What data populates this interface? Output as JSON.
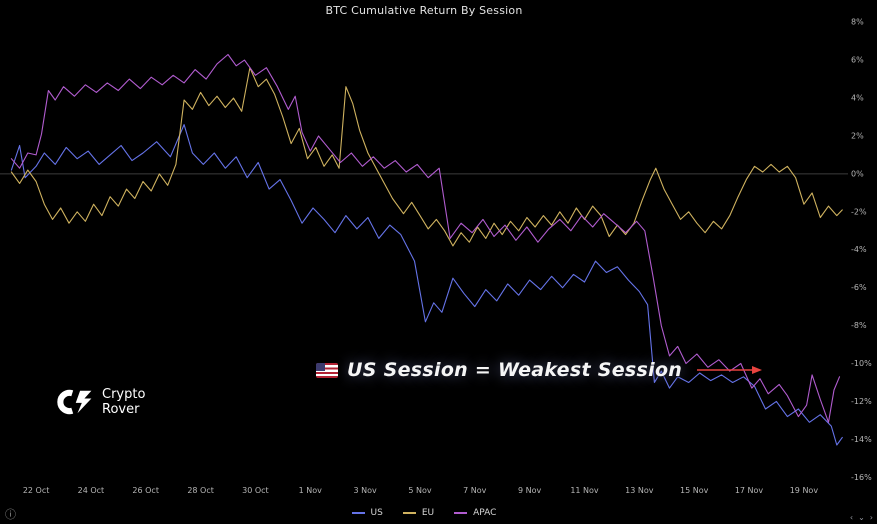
{
  "title": "BTC Cumulative Return By Session",
  "annotation": {
    "flag": "US",
    "text": "US Session = Weakest Session",
    "arrow_color": "#e8433f"
  },
  "logo": {
    "line1": "Crypto",
    "line2": "Rover"
  },
  "footer": {
    "info_symbol": "ⓘ",
    "nav_left": "‹",
    "nav_middle": "⌄",
    "nav_right": "›"
  },
  "chart_data": {
    "type": "line",
    "title": "BTC Cumulative Return By Session",
    "xlabel": "",
    "ylabel": "",
    "grid": false,
    "zero_line": true,
    "legend_position": "bottom",
    "ylim": [
      -16,
      8
    ],
    "y_unit": "%",
    "x_unit": "day index (0 = 22 Oct)",
    "y_ticks": [
      {
        "value": 8,
        "label": "8%"
      },
      {
        "value": 6,
        "label": "6%"
      },
      {
        "value": 4,
        "label": "4%"
      },
      {
        "value": 2,
        "label": "2%"
      },
      {
        "value": 0,
        "label": "0%"
      },
      {
        "value": -2,
        "label": "-2%"
      },
      {
        "value": -4,
        "label": "-4%"
      },
      {
        "value": -6,
        "label": "-6%"
      },
      {
        "value": -8,
        "label": "-8%"
      },
      {
        "value": -10,
        "label": "-10%"
      },
      {
        "value": -12,
        "label": "-12%"
      },
      {
        "value": -14,
        "label": "-14%"
      },
      {
        "value": -16,
        "label": "-16%"
      }
    ],
    "x_ticks": [
      {
        "day": 0,
        "label": "22 Oct"
      },
      {
        "day": 2,
        "label": "24 Oct"
      },
      {
        "day": 4,
        "label": "26 Oct"
      },
      {
        "day": 6,
        "label": "28 Oct"
      },
      {
        "day": 8,
        "label": "30 Oct"
      },
      {
        "day": 10,
        "label": "1 Nov"
      },
      {
        "day": 12,
        "label": "3 Nov"
      },
      {
        "day": 14,
        "label": "5 Nov"
      },
      {
        "day": 16,
        "label": "7 Nov"
      },
      {
        "day": 18,
        "label": "9 Nov"
      },
      {
        "day": 20,
        "label": "11 Nov"
      },
      {
        "day": 22,
        "label": "13 Nov"
      },
      {
        "day": 24,
        "label": "15 Nov"
      },
      {
        "day": 26,
        "label": "17 Nov"
      },
      {
        "day": 28,
        "label": "19 Nov"
      }
    ],
    "series": [
      {
        "name": "US",
        "color": "#6573e8",
        "points": [
          [
            -0.9,
            0.2
          ],
          [
            -0.6,
            1.5
          ],
          [
            -0.4,
            -0.2
          ],
          [
            0,
            0.4
          ],
          [
            0.3,
            1.1
          ],
          [
            0.7,
            0.5
          ],
          [
            1.1,
            1.4
          ],
          [
            1.5,
            0.8
          ],
          [
            1.9,
            1.2
          ],
          [
            2.3,
            0.5
          ],
          [
            2.7,
            1.0
          ],
          [
            3.1,
            1.5
          ],
          [
            3.5,
            0.7
          ],
          [
            3.9,
            1.1
          ],
          [
            4.4,
            1.7
          ],
          [
            4.9,
            0.9
          ],
          [
            5.4,
            2.6
          ],
          [
            5.7,
            1.1
          ],
          [
            6.1,
            0.5
          ],
          [
            6.5,
            1.1
          ],
          [
            6.9,
            0.3
          ],
          [
            7.3,
            0.9
          ],
          [
            7.7,
            -0.2
          ],
          [
            8.1,
            0.6
          ],
          [
            8.5,
            -0.8
          ],
          [
            8.9,
            -0.3
          ],
          [
            9.3,
            -1.4
          ],
          [
            9.7,
            -2.6
          ],
          [
            10.1,
            -1.8
          ],
          [
            10.5,
            -2.4
          ],
          [
            10.9,
            -3.1
          ],
          [
            11.3,
            -2.2
          ],
          [
            11.7,
            -2.9
          ],
          [
            12.1,
            -2.3
          ],
          [
            12.5,
            -3.4
          ],
          [
            12.9,
            -2.7
          ],
          [
            13.3,
            -3.2
          ],
          [
            13.8,
            -4.6
          ],
          [
            14.2,
            -7.8
          ],
          [
            14.5,
            -6.8
          ],
          [
            14.8,
            -7.3
          ],
          [
            15.2,
            -5.5
          ],
          [
            15.6,
            -6.3
          ],
          [
            16.0,
            -7.0
          ],
          [
            16.4,
            -6.1
          ],
          [
            16.8,
            -6.7
          ],
          [
            17.2,
            -5.8
          ],
          [
            17.6,
            -6.4
          ],
          [
            18.0,
            -5.6
          ],
          [
            18.4,
            -6.1
          ],
          [
            18.8,
            -5.4
          ],
          [
            19.2,
            -6.0
          ],
          [
            19.6,
            -5.3
          ],
          [
            20.0,
            -5.7
          ],
          [
            20.4,
            -4.6
          ],
          [
            20.8,
            -5.2
          ],
          [
            21.2,
            -4.9
          ],
          [
            21.6,
            -5.6
          ],
          [
            22.0,
            -6.2
          ],
          [
            22.3,
            -6.9
          ],
          [
            22.55,
            -11.0
          ],
          [
            22.8,
            -10.4
          ],
          [
            23.1,
            -11.3
          ],
          [
            23.4,
            -10.7
          ],
          [
            23.8,
            -11.0
          ],
          [
            24.2,
            -10.5
          ],
          [
            24.6,
            -10.9
          ],
          [
            25.0,
            -10.6
          ],
          [
            25.4,
            -11.0
          ],
          [
            25.8,
            -10.7
          ],
          [
            26.2,
            -11.2
          ],
          [
            26.6,
            -12.4
          ],
          [
            27.0,
            -12.0
          ],
          [
            27.4,
            -12.8
          ],
          [
            27.8,
            -12.4
          ],
          [
            28.2,
            -13.1
          ],
          [
            28.6,
            -12.7
          ],
          [
            29.0,
            -13.3
          ],
          [
            29.2,
            -14.3
          ],
          [
            29.4,
            -13.9
          ]
        ]
      },
      {
        "name": "EU",
        "color": "#cfb25f",
        "points": [
          [
            -0.9,
            0.1
          ],
          [
            -0.6,
            -0.5
          ],
          [
            -0.3,
            0.2
          ],
          [
            0,
            -0.4
          ],
          [
            0.3,
            -1.6
          ],
          [
            0.6,
            -2.4
          ],
          [
            0.9,
            -1.8
          ],
          [
            1.2,
            -2.6
          ],
          [
            1.5,
            -2.0
          ],
          [
            1.8,
            -2.5
          ],
          [
            2.1,
            -1.6
          ],
          [
            2.4,
            -2.2
          ],
          [
            2.7,
            -1.2
          ],
          [
            3.0,
            -1.7
          ],
          [
            3.3,
            -0.8
          ],
          [
            3.6,
            -1.3
          ],
          [
            3.9,
            -0.4
          ],
          [
            4.2,
            -0.9
          ],
          [
            4.5,
            0.0
          ],
          [
            4.8,
            -0.6
          ],
          [
            5.1,
            0.5
          ],
          [
            5.4,
            3.9
          ],
          [
            5.7,
            3.4
          ],
          [
            6.0,
            4.3
          ],
          [
            6.3,
            3.6
          ],
          [
            6.6,
            4.1
          ],
          [
            6.9,
            3.5
          ],
          [
            7.2,
            4.0
          ],
          [
            7.5,
            3.3
          ],
          [
            7.8,
            5.6
          ],
          [
            8.1,
            4.6
          ],
          [
            8.4,
            5.0
          ],
          [
            8.7,
            4.2
          ],
          [
            9.0,
            3.0
          ],
          [
            9.3,
            1.6
          ],
          [
            9.6,
            2.4
          ],
          [
            9.9,
            0.8
          ],
          [
            10.2,
            1.4
          ],
          [
            10.5,
            0.4
          ],
          [
            10.8,
            1.0
          ],
          [
            11.05,
            0.3
          ],
          [
            11.3,
            4.6
          ],
          [
            11.55,
            3.7
          ],
          [
            11.8,
            2.3
          ],
          [
            12.1,
            1.1
          ],
          [
            12.4,
            0.3
          ],
          [
            12.7,
            -0.5
          ],
          [
            13.0,
            -1.3
          ],
          [
            13.4,
            -2.1
          ],
          [
            13.7,
            -1.5
          ],
          [
            14.0,
            -2.2
          ],
          [
            14.3,
            -2.9
          ],
          [
            14.6,
            -2.4
          ],
          [
            14.9,
            -3.0
          ],
          [
            15.2,
            -3.8
          ],
          [
            15.5,
            -3.1
          ],
          [
            15.8,
            -3.6
          ],
          [
            16.1,
            -2.8
          ],
          [
            16.4,
            -3.4
          ],
          [
            16.7,
            -2.6
          ],
          [
            17.0,
            -3.2
          ],
          [
            17.3,
            -2.5
          ],
          [
            17.6,
            -3.0
          ],
          [
            17.9,
            -2.3
          ],
          [
            18.2,
            -2.8
          ],
          [
            18.5,
            -2.2
          ],
          [
            18.8,
            -2.7
          ],
          [
            19.1,
            -2.0
          ],
          [
            19.4,
            -2.6
          ],
          [
            19.7,
            -1.8
          ],
          [
            20.0,
            -2.4
          ],
          [
            20.3,
            -1.7
          ],
          [
            20.6,
            -2.2
          ],
          [
            20.9,
            -3.3
          ],
          [
            21.2,
            -2.7
          ],
          [
            21.5,
            -3.2
          ],
          [
            21.8,
            -2.6
          ],
          [
            22.1,
            -1.4
          ],
          [
            22.4,
            -0.3
          ],
          [
            22.6,
            0.3
          ],
          [
            22.9,
            -0.8
          ],
          [
            23.2,
            -1.6
          ],
          [
            23.5,
            -2.4
          ],
          [
            23.8,
            -2.0
          ],
          [
            24.1,
            -2.6
          ],
          [
            24.4,
            -3.1
          ],
          [
            24.7,
            -2.5
          ],
          [
            25.0,
            -2.9
          ],
          [
            25.3,
            -2.2
          ],
          [
            25.6,
            -1.2
          ],
          [
            25.9,
            -0.3
          ],
          [
            26.2,
            0.4
          ],
          [
            26.5,
            0.1
          ],
          [
            26.8,
            0.5
          ],
          [
            27.1,
            0.1
          ],
          [
            27.4,
            0.4
          ],
          [
            27.7,
            -0.2
          ],
          [
            28.0,
            -1.6
          ],
          [
            28.3,
            -1.0
          ],
          [
            28.6,
            -2.3
          ],
          [
            28.9,
            -1.7
          ],
          [
            29.2,
            -2.2
          ],
          [
            29.4,
            -1.9
          ]
        ]
      },
      {
        "name": "APAC",
        "color": "#b15ccf",
        "points": [
          [
            -0.9,
            0.8
          ],
          [
            -0.6,
            0.3
          ],
          [
            -0.3,
            1.1
          ],
          [
            0,
            1.0
          ],
          [
            0.2,
            2.1
          ],
          [
            0.45,
            4.4
          ],
          [
            0.7,
            3.9
          ],
          [
            1.0,
            4.6
          ],
          [
            1.4,
            4.1
          ],
          [
            1.8,
            4.7
          ],
          [
            2.2,
            4.3
          ],
          [
            2.6,
            4.8
          ],
          [
            3.0,
            4.4
          ],
          [
            3.4,
            5.0
          ],
          [
            3.8,
            4.5
          ],
          [
            4.2,
            5.1
          ],
          [
            4.6,
            4.7
          ],
          [
            5.0,
            5.2
          ],
          [
            5.4,
            4.8
          ],
          [
            5.8,
            5.5
          ],
          [
            6.2,
            5.0
          ],
          [
            6.6,
            5.8
          ],
          [
            7.0,
            6.3
          ],
          [
            7.3,
            5.7
          ],
          [
            7.6,
            6.0
          ],
          [
            8.0,
            5.2
          ],
          [
            8.4,
            5.6
          ],
          [
            8.8,
            4.6
          ],
          [
            9.2,
            3.4
          ],
          [
            9.45,
            4.1
          ],
          [
            9.7,
            2.2
          ],
          [
            10.0,
            1.2
          ],
          [
            10.3,
            2.0
          ],
          [
            10.7,
            1.3
          ],
          [
            11.1,
            0.6
          ],
          [
            11.5,
            1.1
          ],
          [
            11.9,
            0.4
          ],
          [
            12.3,
            0.9
          ],
          [
            12.7,
            0.3
          ],
          [
            13.1,
            0.7
          ],
          [
            13.5,
            0.1
          ],
          [
            13.9,
            0.5
          ],
          [
            14.3,
            -0.2
          ],
          [
            14.7,
            0.3
          ],
          [
            15.1,
            -3.4
          ],
          [
            15.5,
            -2.6
          ],
          [
            15.9,
            -3.1
          ],
          [
            16.3,
            -2.4
          ],
          [
            16.7,
            -3.3
          ],
          [
            17.1,
            -2.7
          ],
          [
            17.5,
            -3.5
          ],
          [
            17.9,
            -2.8
          ],
          [
            18.3,
            -3.6
          ],
          [
            18.7,
            -2.9
          ],
          [
            19.1,
            -2.4
          ],
          [
            19.5,
            -3.0
          ],
          [
            19.9,
            -2.2
          ],
          [
            20.3,
            -2.8
          ],
          [
            20.7,
            -2.1
          ],
          [
            21.1,
            -2.6
          ],
          [
            21.5,
            -3.1
          ],
          [
            21.9,
            -2.5
          ],
          [
            22.2,
            -3.0
          ],
          [
            22.5,
            -5.4
          ],
          [
            22.8,
            -8.0
          ],
          [
            23.1,
            -9.6
          ],
          [
            23.4,
            -9.1
          ],
          [
            23.7,
            -10.0
          ],
          [
            24.1,
            -9.5
          ],
          [
            24.5,
            -10.2
          ],
          [
            24.9,
            -9.8
          ],
          [
            25.3,
            -10.4
          ],
          [
            25.7,
            -10.0
          ],
          [
            26.1,
            -11.3
          ],
          [
            26.4,
            -10.8
          ],
          [
            26.7,
            -11.6
          ],
          [
            27.1,
            -11.1
          ],
          [
            27.4,
            -11.7
          ],
          [
            27.8,
            -12.8
          ],
          [
            28.1,
            -12.2
          ],
          [
            28.3,
            -10.6
          ],
          [
            28.6,
            -11.9
          ],
          [
            28.9,
            -13.1
          ],
          [
            29.1,
            -11.4
          ],
          [
            29.3,
            -10.7
          ]
        ]
      }
    ]
  }
}
